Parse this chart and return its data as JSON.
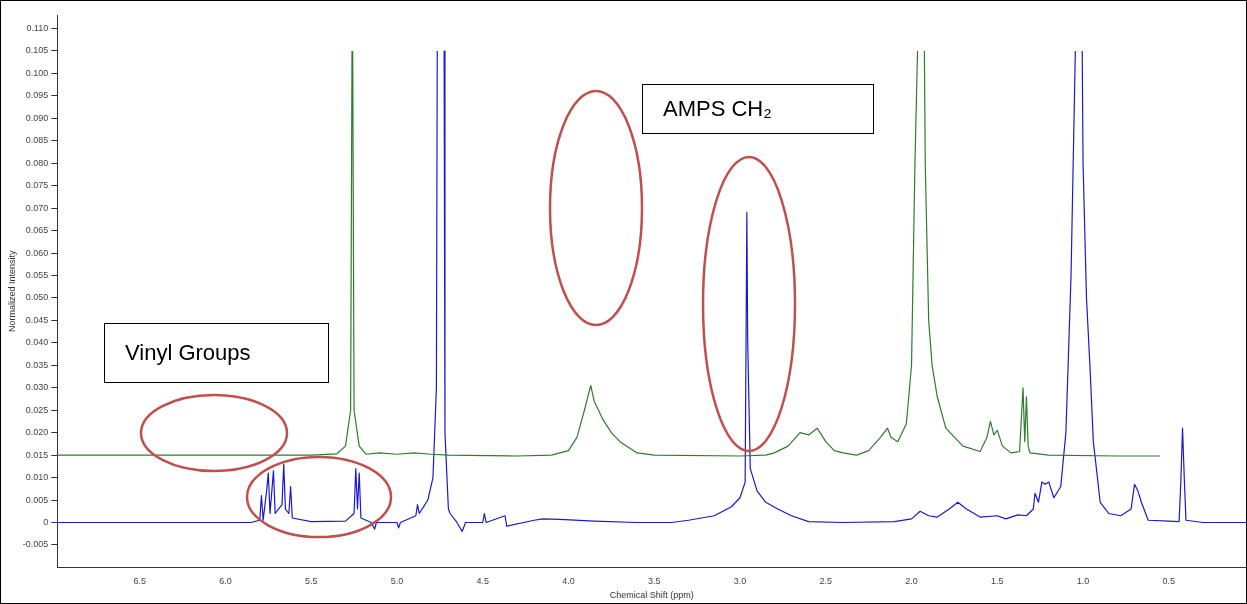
{
  "chart_data": {
    "type": "line",
    "xlabel": "Chemical Shift (ppm)",
    "ylabel": "Normalized Intensity",
    "annotations": [
      "Vinyl Groups",
      "AMPS CH₂"
    ],
    "xlim": [
      6.98,
      0.05
    ],
    "ylim": [
      -0.01,
      0.113
    ],
    "xticks": [
      {
        "value": 6.5,
        "label": "6.5"
      },
      {
        "value": 6.0,
        "label": "6.0"
      },
      {
        "value": 5.5,
        "label": "5.5"
      },
      {
        "value": 5.0,
        "label": "5.0"
      },
      {
        "value": 4.5,
        "label": "4.5"
      },
      {
        "value": 4.0,
        "label": "4.0"
      },
      {
        "value": 3.5,
        "label": "3.5"
      },
      {
        "value": 3.0,
        "label": "3.0"
      },
      {
        "value": 2.5,
        "label": "2.5"
      },
      {
        "value": 2.0,
        "label": "2.0"
      },
      {
        "value": 1.5,
        "label": "1.5"
      },
      {
        "value": 1.0,
        "label": "1.0"
      },
      {
        "value": 0.5,
        "label": "0.5"
      }
    ],
    "yticks": [
      {
        "value": -0.005,
        "label": "-0.005"
      },
      {
        "value": 0,
        "label": "0"
      },
      {
        "value": 0.005,
        "label": "0.005"
      },
      {
        "value": 0.01,
        "label": "0.010"
      },
      {
        "value": 0.015,
        "label": "0.015"
      },
      {
        "value": 0.02,
        "label": "0.020"
      },
      {
        "value": 0.025,
        "label": "0.025"
      },
      {
        "value": 0.03,
        "label": "0.030"
      },
      {
        "value": 0.035,
        "label": "0.035"
      },
      {
        "value": 0.04,
        "label": "0.040"
      },
      {
        "value": 0.045,
        "label": "0.045"
      },
      {
        "value": 0.05,
        "label": "0.050"
      },
      {
        "value": 0.055,
        "label": "0.055"
      },
      {
        "value": 0.06,
        "label": "0.060"
      },
      {
        "value": 0.065,
        "label": "0.065"
      },
      {
        "value": 0.07,
        "label": "0.070"
      },
      {
        "value": 0.075,
        "label": "0.075"
      },
      {
        "value": 0.08,
        "label": "0.080"
      },
      {
        "value": 0.085,
        "label": "0.085"
      },
      {
        "value": 0.09,
        "label": "0.090"
      },
      {
        "value": 0.095,
        "label": "0.095"
      },
      {
        "value": 0.1,
        "label": "0.100"
      },
      {
        "value": 0.105,
        "label": "0.105"
      },
      {
        "value": 0.11,
        "label": "0.110"
      }
    ],
    "series": [
      {
        "color": "#2e7d2e",
        "x": [
          6.98,
          5.5,
          5.35,
          5.3,
          5.27,
          5.262,
          5.26,
          5.258,
          5.25,
          5.22,
          5.18,
          5.1,
          5.0,
          4.9,
          4.8,
          4.7,
          4.3,
          4.1,
          4.0,
          3.95,
          3.9,
          3.87,
          3.85,
          3.8,
          3.75,
          3.7,
          3.6,
          3.5,
          3.0,
          2.85,
          2.8,
          2.72,
          2.65,
          2.6,
          2.55,
          2.5,
          2.45,
          2.4,
          2.32,
          2.25,
          2.18,
          2.14,
          2.12,
          2.08,
          2.03,
          2.0,
          1.98,
          1.965,
          1.96,
          1.93,
          1.925,
          1.92,
          1.9,
          1.88,
          1.85,
          1.8,
          1.7,
          1.6,
          1.56,
          1.54,
          1.52,
          1.5,
          1.47,
          1.42,
          1.37,
          1.35,
          1.34,
          1.33,
          1.32,
          1.31,
          1.2,
          0.8,
          0.55
        ],
        "values": [
          0.015,
          0.015,
          0.0153,
          0.017,
          0.025,
          0.105,
          null,
          0.105,
          0.025,
          0.017,
          0.0152,
          0.0155,
          0.0152,
          0.0155,
          0.0152,
          0.015,
          0.0148,
          0.015,
          0.016,
          0.019,
          0.026,
          0.0305,
          0.027,
          0.023,
          0.02,
          0.018,
          0.0155,
          0.015,
          0.0148,
          0.015,
          0.0155,
          0.017,
          0.02,
          0.0195,
          0.021,
          0.018,
          0.016,
          0.0155,
          0.015,
          0.016,
          0.019,
          0.021,
          0.019,
          0.018,
          0.022,
          0.035,
          0.08,
          0.105,
          null,
          null,
          0.105,
          0.08,
          0.045,
          0.035,
          0.028,
          0.021,
          0.017,
          0.0158,
          0.019,
          0.0225,
          0.0195,
          0.0205,
          0.017,
          0.0155,
          0.0158,
          0.03,
          0.018,
          0.028,
          0.017,
          0.0155,
          0.015,
          0.0148,
          0.0148
        ]
      },
      {
        "color": "#1a1acc",
        "x": [
          6.98,
          5.85,
          5.8,
          5.79,
          5.78,
          5.76,
          5.75,
          5.74,
          5.72,
          5.71,
          5.67,
          5.66,
          5.65,
          5.63,
          5.62,
          5.61,
          5.5,
          5.3,
          5.25,
          5.24,
          5.23,
          5.22,
          5.21,
          5.15,
          5.13,
          5.12,
          5.0,
          4.99,
          4.98,
          4.89,
          4.88,
          4.87,
          4.82,
          4.79,
          4.77,
          4.765,
          4.76,
          4.73,
          4.725,
          4.72,
          4.7,
          4.69,
          4.65,
          4.62,
          4.6,
          4.5,
          4.49,
          4.48,
          4.37,
          4.36,
          4.2,
          4.15,
          4.05,
          3.85,
          3.6,
          3.4,
          3.3,
          3.15,
          3.05,
          3.0,
          2.97,
          2.96,
          2.955,
          2.94,
          2.9,
          2.85,
          2.78,
          2.7,
          2.6,
          2.4,
          2.1,
          2.0,
          1.95,
          1.9,
          1.85,
          1.78,
          1.73,
          1.68,
          1.6,
          1.5,
          1.45,
          1.38,
          1.33,
          1.29,
          1.28,
          1.26,
          1.24,
          1.22,
          1.2,
          1.17,
          1.13,
          1.1,
          1.07,
          1.05,
          1.045,
          1.04,
          1.01,
          1.005,
          1.0,
          0.98,
          0.96,
          0.94,
          0.9,
          0.85,
          0.78,
          0.72,
          0.7,
          0.68,
          0.66,
          0.62,
          0.5,
          0.44,
          0.43,
          0.42,
          0.41,
          0.4,
          0.3,
          0.05
        ],
        "values": [
          0,
          0,
          0.0005,
          0.006,
          0.0005,
          0.007,
          0.011,
          0.002,
          0.0115,
          0.002,
          0.004,
          0.013,
          0.003,
          0.002,
          0.008,
          0.001,
          0.0002,
          0.0003,
          0.002,
          0.012,
          0.003,
          0.011,
          0.001,
          0,
          -0.0015,
          0,
          0,
          -0.0012,
          0,
          0.0015,
          0.004,
          0.002,
          0.005,
          0.01,
          0.03,
          0.105,
          null,
          null,
          0.105,
          0.02,
          0.003,
          0.002,
          0,
          -0.002,
          0,
          0,
          0.002,
          0,
          0.0015,
          -0.0008,
          0.0005,
          0.0008,
          0.0007,
          0.0003,
          0,
          0,
          0.0005,
          0.0015,
          0.0035,
          0.0055,
          0.009,
          0.069,
          0.04,
          0.012,
          0.007,
          0.0045,
          0.003,
          0.0015,
          0.0002,
          0,
          0.0002,
          0.0008,
          0.0025,
          0.0015,
          0.0012,
          0.003,
          0.0045,
          0.003,
          0.0012,
          0.0015,
          0.0008,
          0.0017,
          0.0015,
          0.003,
          0.0065,
          0.0045,
          0.009,
          0.0085,
          0.009,
          0.0055,
          0.008,
          0.02,
          0.055,
          0.095,
          0.105,
          null,
          null,
          0.105,
          0.08,
          0.05,
          0.035,
          0.018,
          0.0045,
          0.002,
          0.0015,
          0.003,
          0.0085,
          0.007,
          0.0045,
          0.0005,
          0.0003,
          0.0002,
          0.009,
          0.021,
          0.01,
          0.0005,
          0,
          0
        ]
      }
    ]
  }
}
